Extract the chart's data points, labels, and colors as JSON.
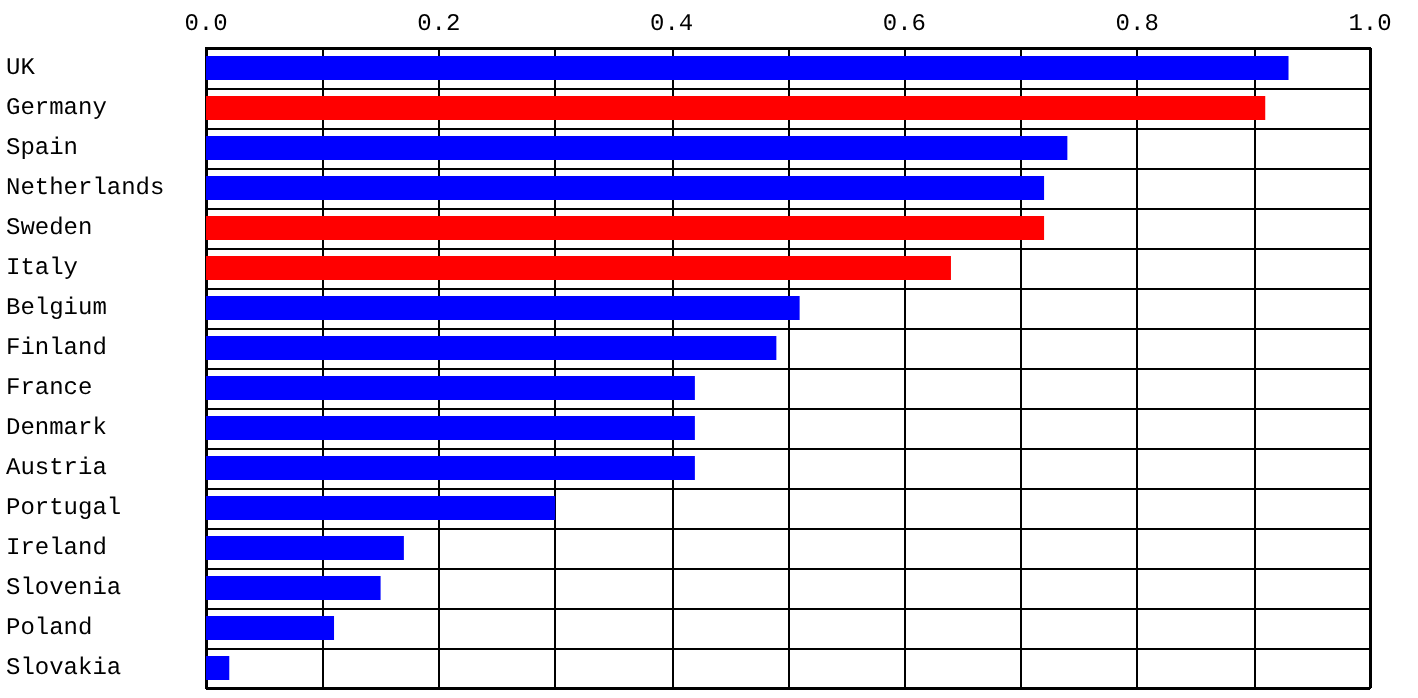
{
  "chart_data": {
    "type": "bar",
    "orientation": "horizontal",
    "categories": [
      "UK",
      "Germany",
      "Spain",
      "Netherlands",
      "Sweden",
      "Italy",
      "Belgium",
      "Finland",
      "France",
      "Denmark",
      "Austria",
      "Portugal",
      "Ireland",
      "Slovenia",
      "Poland",
      "Slovakia"
    ],
    "values": [
      0.93,
      0.91,
      0.74,
      0.72,
      0.72,
      0.64,
      0.51,
      0.49,
      0.42,
      0.42,
      0.42,
      0.3,
      0.17,
      0.15,
      0.11,
      0.02
    ],
    "colors": [
      "#0000ff",
      "#ff0000",
      "#0000ff",
      "#0000ff",
      "#ff0000",
      "#ff0000",
      "#0000ff",
      "#0000ff",
      "#0000ff",
      "#0000ff",
      "#0000ff",
      "#0000ff",
      "#0000ff",
      "#0000ff",
      "#0000ff",
      "#0000ff"
    ],
    "xlim": [
      0,
      1
    ],
    "xticks": [
      {
        "value": 0,
        "label": "0.0"
      },
      {
        "value": 0.1,
        "label": null
      },
      {
        "value": 0.2,
        "label": "0.2"
      },
      {
        "value": 0.3,
        "label": null
      },
      {
        "value": 0.4,
        "label": "0.4"
      },
      {
        "value": 0.5,
        "label": null
      },
      {
        "value": 0.6,
        "label": "0.6"
      },
      {
        "value": 0.7,
        "label": null
      },
      {
        "value": 0.8,
        "label": "0.8"
      },
      {
        "value": 0.9,
        "label": null
      },
      {
        "value": 1,
        "label": "1.0"
      }
    ],
    "grid": true
  }
}
